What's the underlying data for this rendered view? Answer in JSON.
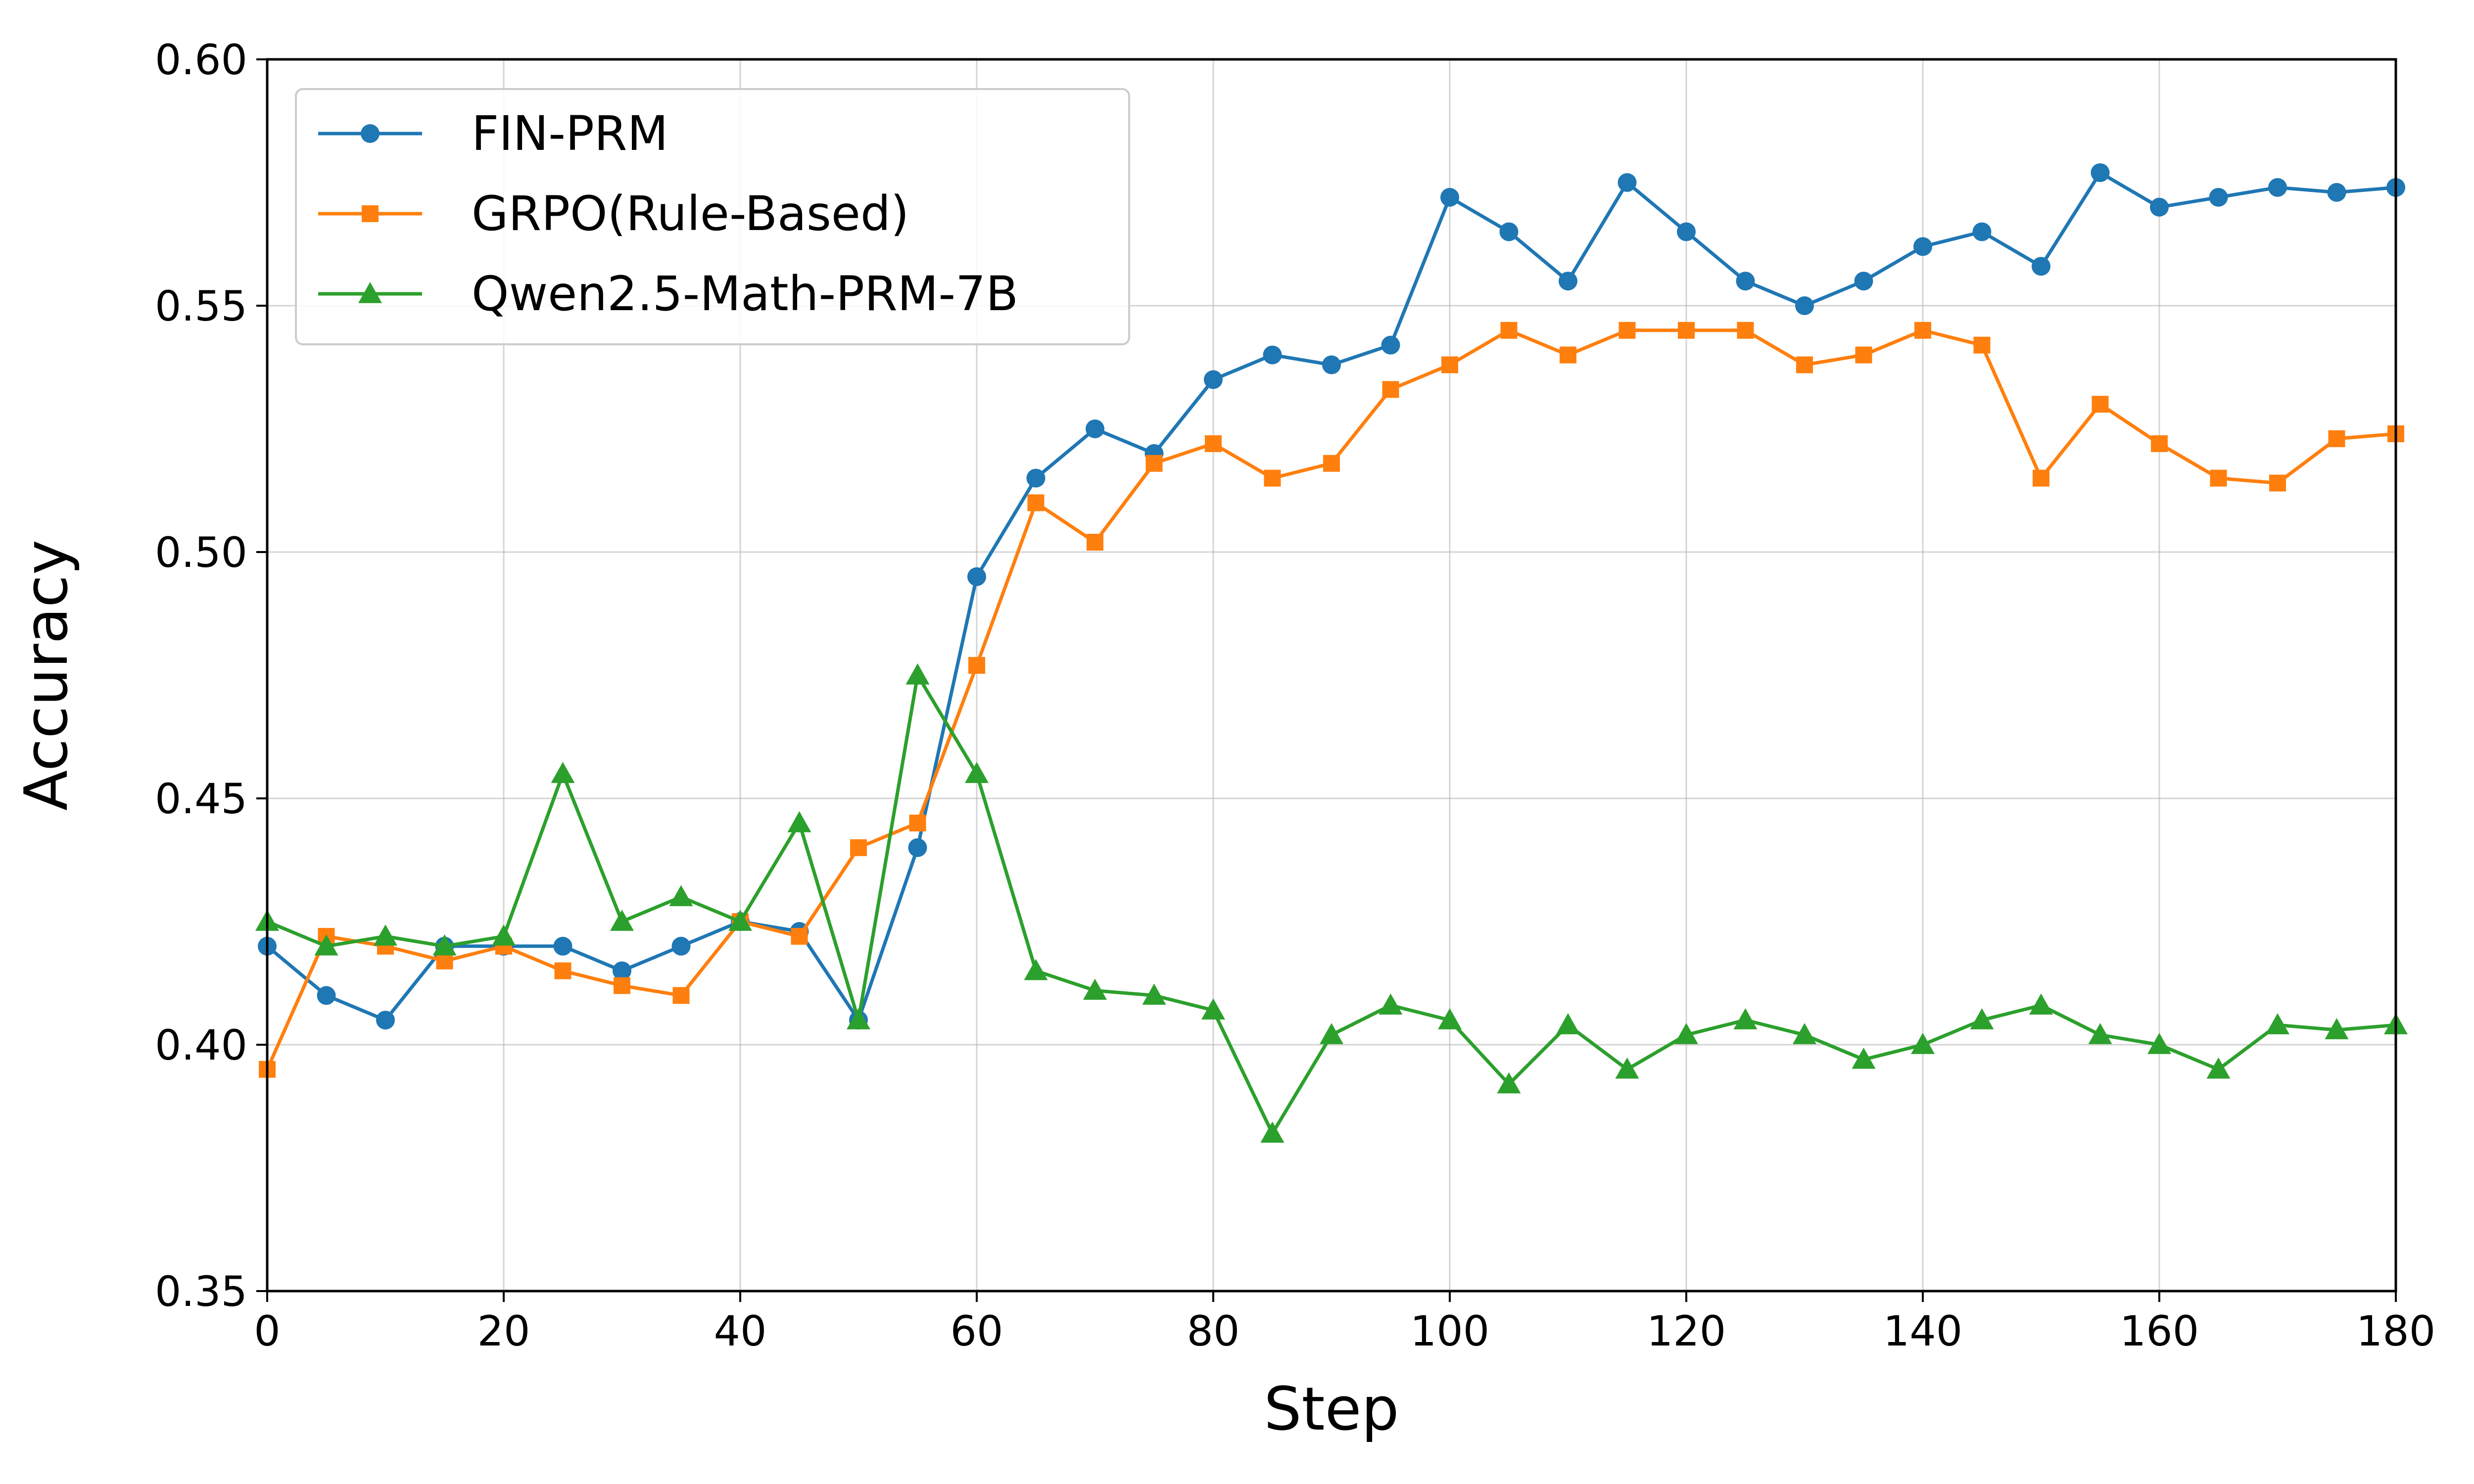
{
  "chart_data": {
    "type": "line",
    "title": "",
    "xlabel": "Step",
    "ylabel": "Accuracy",
    "xlim": [
      0,
      180
    ],
    "ylim": [
      0.35,
      0.6
    ],
    "xticks": [
      0,
      20,
      40,
      60,
      80,
      100,
      120,
      140,
      160,
      180
    ],
    "yticks": [
      0.35,
      0.4,
      0.45,
      0.5,
      0.55,
      0.6
    ],
    "ytick_labels": [
      "0.35",
      "0.40",
      "0.45",
      "0.50",
      "0.55",
      "0.60"
    ],
    "grid": true,
    "legend_position": "top-left",
    "x": [
      0,
      5,
      10,
      15,
      20,
      25,
      30,
      35,
      40,
      45,
      50,
      55,
      60,
      65,
      70,
      75,
      80,
      85,
      90,
      95,
      100,
      105,
      110,
      115,
      120,
      125,
      130,
      135,
      140,
      145,
      150,
      155,
      160,
      165,
      170,
      175,
      180
    ],
    "series": [
      {
        "name": "FIN-PRM",
        "color": "#1f77b4",
        "marker": "circle",
        "values": [
          0.42,
          0.41,
          0.405,
          0.42,
          0.42,
          0.42,
          0.415,
          0.42,
          0.425,
          0.423,
          0.405,
          0.44,
          0.495,
          0.515,
          0.525,
          0.52,
          0.535,
          0.54,
          0.538,
          0.542,
          0.572,
          0.565,
          0.555,
          0.575,
          0.565,
          0.555,
          0.55,
          0.555,
          0.562,
          0.565,
          0.558,
          0.577,
          0.57,
          0.572,
          0.574,
          0.573,
          0.574
        ]
      },
      {
        "name": "GRPO(Rule-Based)",
        "color": "#ff7f0e",
        "marker": "square",
        "values": [
          0.395,
          0.422,
          0.42,
          0.417,
          0.42,
          0.415,
          0.412,
          0.41,
          0.425,
          0.422,
          0.44,
          0.445,
          0.477,
          0.51,
          0.502,
          0.518,
          0.522,
          0.515,
          0.518,
          0.533,
          0.538,
          0.545,
          0.54,
          0.545,
          0.545,
          0.545,
          0.538,
          0.54,
          0.545,
          0.542,
          0.515,
          0.53,
          0.522,
          0.515,
          0.514,
          0.523,
          0.524
        ]
      },
      {
        "name": "Qwen2.5-Math-PRM-7B",
        "color": "#2ca02c",
        "marker": "triangle",
        "values": [
          0.425,
          0.42,
          0.422,
          0.42,
          0.422,
          0.455,
          0.425,
          0.43,
          0.425,
          0.445,
          0.405,
          0.475,
          0.455,
          0.415,
          0.411,
          0.41,
          0.407,
          0.382,
          0.402,
          0.408,
          0.405,
          0.392,
          0.404,
          0.395,
          0.402,
          0.405,
          0.402,
          0.397,
          0.4,
          0.405,
          0.408,
          0.402,
          0.4,
          0.395,
          0.404,
          0.403,
          0.404
        ]
      }
    ]
  }
}
